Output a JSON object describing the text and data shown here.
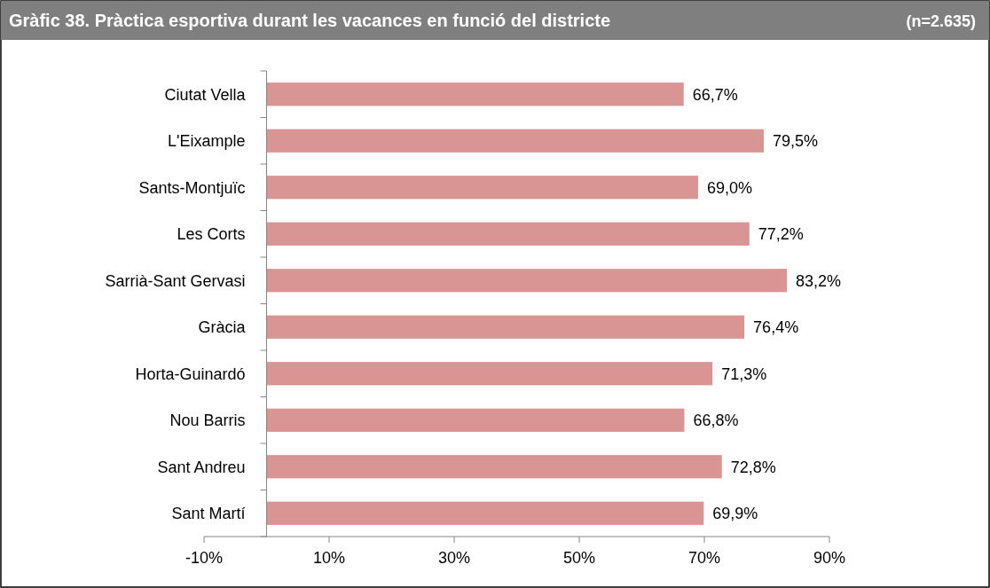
{
  "chart_data": {
    "type": "bar",
    "orientation": "horizontal",
    "title": "Gràfic 38. Pràctica esportiva durant les vacances en funció del districte",
    "subtitle": "(n=2.635)",
    "categories": [
      "Ciutat Vella",
      "L'Eixample",
      "Sants-Montjuïc",
      "Les Corts",
      "Sarrià-Sant Gervasi",
      "Gràcia",
      "Horta-Guinardó",
      "Nou Barris",
      "Sant Andreu",
      "Sant Martí"
    ],
    "values": [
      66.7,
      79.5,
      69.0,
      77.2,
      83.2,
      76.4,
      71.3,
      66.8,
      72.8,
      69.9
    ],
    "value_labels": [
      "66,7%",
      "79,5%",
      "69,0%",
      "77,2%",
      "83,2%",
      "76,4%",
      "71,3%",
      "66,8%",
      "72,8%",
      "69,9%"
    ],
    "color": "#d99594",
    "xlim": [
      -10,
      90
    ],
    "xticks": [
      {
        "value": -10,
        "label": "-10%"
      },
      {
        "value": 10,
        "label": "10%"
      },
      {
        "value": 30,
        "label": "30%"
      },
      {
        "value": 50,
        "label": "50%"
      },
      {
        "value": 70,
        "label": "70%"
      },
      {
        "value": 90,
        "label": "90%"
      }
    ]
  }
}
